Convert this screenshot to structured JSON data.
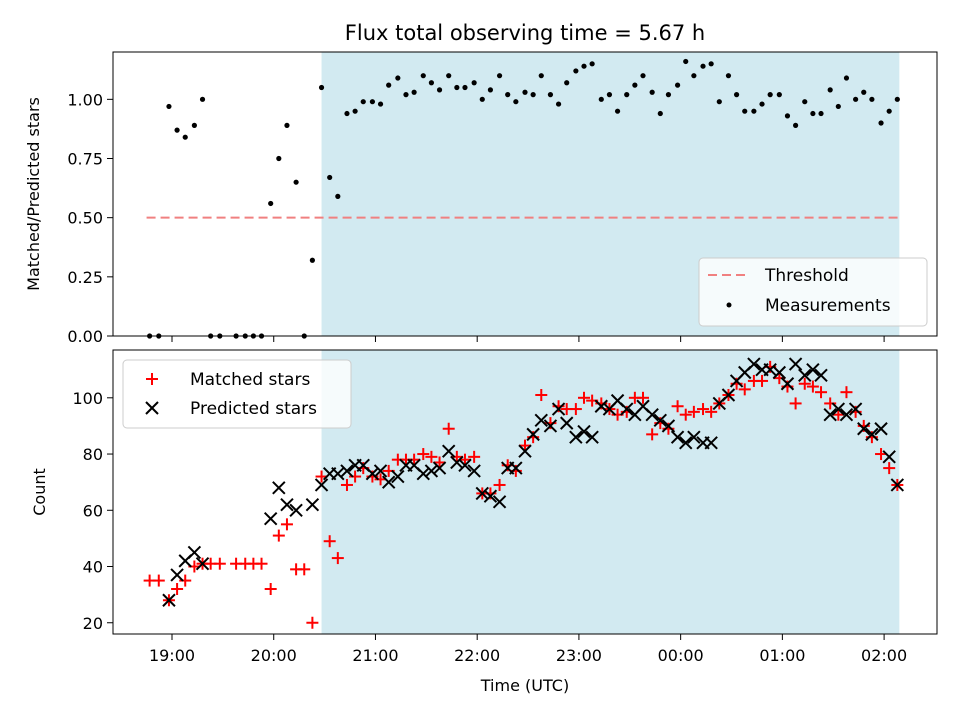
{
  "chart_data": [
    {
      "type": "scatter",
      "title": "Flux total observing time = 5.67 h",
      "xlabel": "",
      "ylabel": "Matched/Predicted stars",
      "x_range_hours": [
        18.42,
        26.52
      ],
      "ylim": [
        0,
        1.2
      ],
      "yticks": [
        0.0,
        0.25,
        0.5,
        0.75,
        1.0
      ],
      "ytick_labels": [
        "0.00",
        "0.25",
        "0.50",
        "0.75",
        "1.00"
      ],
      "shaded_region_hours": [
        20.47,
        26.15
      ],
      "shade_color": "#add8e6",
      "threshold": {
        "name": "Threshold",
        "value": 0.5,
        "x_range_hours": [
          18.75,
          26.15
        ],
        "color": "#f08080"
      },
      "legend": {
        "position": "bottom-right",
        "entries": [
          "Threshold",
          "Measurements"
        ]
      },
      "series": [
        {
          "name": "Measurements",
          "color": "#000000",
          "points": [
            [
              18.78,
              0.0
            ],
            [
              18.87,
              0.0
            ],
            [
              18.97,
              0.97
            ],
            [
              19.05,
              0.87
            ],
            [
              19.13,
              0.84
            ],
            [
              19.22,
              0.89
            ],
            [
              19.3,
              1.0
            ],
            [
              19.38,
              0.0
            ],
            [
              19.47,
              0.0
            ],
            [
              19.63,
              0.0
            ],
            [
              19.72,
              0.0
            ],
            [
              19.8,
              0.0
            ],
            [
              19.88,
              0.0
            ],
            [
              19.97,
              0.56
            ],
            [
              20.05,
              0.75
            ],
            [
              20.13,
              0.89
            ],
            [
              20.22,
              0.65
            ],
            [
              20.3,
              0.0
            ],
            [
              20.38,
              0.32
            ],
            [
              20.47,
              1.05
            ],
            [
              20.55,
              0.67
            ],
            [
              20.63,
              0.59
            ],
            [
              20.72,
              0.94
            ],
            [
              20.8,
              0.95
            ],
            [
              20.88,
              0.99
            ],
            [
              20.97,
              0.99
            ],
            [
              21.05,
              0.98
            ],
            [
              21.13,
              1.06
            ],
            [
              21.22,
              1.09
            ],
            [
              21.3,
              1.02
            ],
            [
              21.38,
              1.03
            ],
            [
              21.47,
              1.1
            ],
            [
              21.55,
              1.07
            ],
            [
              21.63,
              1.04
            ],
            [
              21.72,
              1.1
            ],
            [
              21.8,
              1.05
            ],
            [
              21.88,
              1.05
            ],
            [
              21.97,
              1.07
            ],
            [
              22.05,
              1.0
            ],
            [
              22.13,
              1.04
            ],
            [
              22.22,
              1.1
            ],
            [
              22.3,
              1.02
            ],
            [
              22.38,
              0.99
            ],
            [
              22.47,
              1.03
            ],
            [
              22.55,
              1.02
            ],
            [
              22.63,
              1.1
            ],
            [
              22.72,
              1.02
            ],
            [
              22.8,
              0.98
            ],
            [
              22.88,
              1.07
            ],
            [
              22.97,
              1.12
            ],
            [
              23.05,
              1.14
            ],
            [
              23.13,
              1.15
            ],
            [
              23.22,
              1.0
            ],
            [
              23.3,
              1.02
            ],
            [
              23.38,
              0.95
            ],
            [
              23.47,
              1.02
            ],
            [
              23.55,
              1.06
            ],
            [
              23.63,
              1.1
            ],
            [
              23.72,
              1.03
            ],
            [
              23.8,
              0.94
            ],
            [
              23.88,
              1.02
            ],
            [
              23.97,
              1.06
            ],
            [
              24.05,
              1.16
            ],
            [
              24.13,
              1.1
            ],
            [
              24.22,
              1.14
            ],
            [
              24.3,
              1.15
            ],
            [
              24.38,
              0.99
            ],
            [
              24.47,
              1.1
            ],
            [
              24.55,
              1.02
            ],
            [
              24.63,
              0.95
            ],
            [
              24.72,
              0.95
            ],
            [
              24.8,
              0.98
            ],
            [
              24.88,
              1.02
            ],
            [
              24.97,
              1.02
            ],
            [
              25.05,
              0.93
            ],
            [
              25.13,
              0.89
            ],
            [
              25.22,
              0.99
            ],
            [
              25.3,
              0.94
            ],
            [
              25.38,
              0.94
            ],
            [
              25.47,
              1.04
            ],
            [
              25.55,
              0.97
            ],
            [
              25.63,
              1.09
            ],
            [
              25.72,
              1.0
            ],
            [
              25.8,
              1.03
            ],
            [
              25.88,
              1.0
            ],
            [
              25.97,
              0.9
            ],
            [
              26.05,
              0.95
            ],
            [
              26.13,
              1.0
            ]
          ]
        }
      ]
    },
    {
      "type": "scatter",
      "title": "",
      "xlabel": "Time (UTC)",
      "ylabel": "Count",
      "x_range_hours": [
        18.42,
        26.52
      ],
      "xticks_hours": [
        19,
        20,
        21,
        22,
        23,
        24,
        25,
        26
      ],
      "xtick_labels": [
        "19:00",
        "20:00",
        "21:00",
        "22:00",
        "23:00",
        "00:00",
        "01:00",
        "02:00"
      ],
      "ylim": [
        16,
        117
      ],
      "yticks": [
        20,
        40,
        60,
        80,
        100
      ],
      "ytick_labels": [
        "20",
        "40",
        "60",
        "80",
        "100"
      ],
      "shaded_region_hours": [
        20.47,
        26.15
      ],
      "shade_color": "#add8e6",
      "legend": {
        "position": "top-left",
        "entries": [
          "Matched stars",
          "Predicted stars"
        ]
      },
      "series": [
        {
          "name": "Matched stars",
          "marker": "plus",
          "color": "#ff0000",
          "points": [
            [
              18.78,
              35
            ],
            [
              18.87,
              35
            ],
            [
              18.97,
              28
            ],
            [
              19.05,
              32
            ],
            [
              19.13,
              35
            ],
            [
              19.22,
              40
            ],
            [
              19.3,
              41
            ],
            [
              19.38,
              41
            ],
            [
              19.47,
              41
            ],
            [
              19.63,
              41
            ],
            [
              19.72,
              41
            ],
            [
              19.8,
              41
            ],
            [
              19.88,
              41
            ],
            [
              19.97,
              32
            ],
            [
              20.05,
              51
            ],
            [
              20.13,
              55
            ],
            [
              20.22,
              39
            ],
            [
              20.3,
              39
            ],
            [
              20.38,
              20
            ],
            [
              20.47,
              72
            ],
            [
              20.55,
              49
            ],
            [
              20.63,
              43
            ],
            [
              20.72,
              69
            ],
            [
              20.8,
              72
            ],
            [
              20.88,
              75
            ],
            [
              20.97,
              72
            ],
            [
              21.05,
              71
            ],
            [
              21.13,
              74
            ],
            [
              21.22,
              78
            ],
            [
              21.3,
              78
            ],
            [
              21.38,
              78
            ],
            [
              21.47,
              80
            ],
            [
              21.55,
              79
            ],
            [
              21.63,
              77
            ],
            [
              21.72,
              89
            ],
            [
              21.8,
              79
            ],
            [
              21.88,
              78
            ],
            [
              21.97,
              79
            ],
            [
              22.05,
              66
            ],
            [
              22.13,
              66
            ],
            [
              22.22,
              69
            ],
            [
              22.3,
              76
            ],
            [
              22.38,
              74
            ],
            [
              22.47,
              83
            ],
            [
              22.55,
              86
            ],
            [
              22.63,
              101
            ],
            [
              22.72,
              91
            ],
            [
              22.8,
              97
            ],
            [
              22.88,
              96
            ],
            [
              22.97,
              96
            ],
            [
              23.05,
              100
            ],
            [
              23.13,
              99
            ],
            [
              23.22,
              98
            ],
            [
              23.3,
              96
            ],
            [
              23.38,
              94
            ],
            [
              23.47,
              95
            ],
            [
              23.55,
              100
            ],
            [
              23.63,
              100
            ],
            [
              23.72,
              87
            ],
            [
              23.8,
              91
            ],
            [
              23.88,
              89
            ],
            [
              23.97,
              97
            ],
            [
              24.05,
              94
            ],
            [
              24.13,
              95
            ],
            [
              24.22,
              96
            ],
            [
              24.3,
              95
            ],
            [
              24.38,
              98
            ],
            [
              24.47,
              101
            ],
            [
              24.55,
              105
            ],
            [
              24.63,
              103
            ],
            [
              24.72,
              106
            ],
            [
              24.8,
              106
            ],
            [
              24.88,
              111
            ],
            [
              24.97,
              107
            ],
            [
              25.05,
              104
            ],
            [
              25.13,
              98
            ],
            [
              25.22,
              105
            ],
            [
              25.3,
              104
            ],
            [
              25.38,
              102
            ],
            [
              25.47,
              98
            ],
            [
              25.55,
              94
            ],
            [
              25.63,
              102
            ],
            [
              25.72,
              95
            ],
            [
              25.8,
              90
            ],
            [
              25.88,
              86
            ],
            [
              25.97,
              80
            ],
            [
              26.05,
              75
            ],
            [
              26.13,
              69
            ]
          ]
        },
        {
          "name": "Predicted stars",
          "marker": "x",
          "color": "#000000",
          "points": [
            [
              18.97,
              28
            ],
            [
              19.05,
              37
            ],
            [
              19.13,
              42
            ],
            [
              19.22,
              45
            ],
            [
              19.3,
              41
            ],
            [
              19.97,
              57
            ],
            [
              20.05,
              68
            ],
            [
              20.13,
              62
            ],
            [
              20.22,
              60
            ],
            [
              20.38,
              62
            ],
            [
              20.47,
              69
            ],
            [
              20.55,
              73
            ],
            [
              20.63,
              73
            ],
            [
              20.72,
              74
            ],
            [
              20.8,
              76
            ],
            [
              20.88,
              76
            ],
            [
              20.97,
              73
            ],
            [
              21.05,
              74
            ],
            [
              21.13,
              70
            ],
            [
              21.22,
              72
            ],
            [
              21.3,
              76
            ],
            [
              21.38,
              76
            ],
            [
              21.47,
              73
            ],
            [
              21.55,
              74
            ],
            [
              21.63,
              75
            ],
            [
              21.72,
              81
            ],
            [
              21.8,
              77
            ],
            [
              21.88,
              76
            ],
            [
              21.97,
              74
            ],
            [
              22.05,
              66
            ],
            [
              22.13,
              65
            ],
            [
              22.22,
              63
            ],
            [
              22.3,
              75
            ],
            [
              22.38,
              75
            ],
            [
              22.47,
              81
            ],
            [
              22.55,
              87
            ],
            [
              22.63,
              92
            ],
            [
              22.72,
              90
            ],
            [
              22.8,
              96
            ],
            [
              22.88,
              91
            ],
            [
              22.97,
              86
            ],
            [
              23.05,
              88
            ],
            [
              23.13,
              86
            ],
            [
              23.22,
              97
            ],
            [
              23.3,
              96
            ],
            [
              23.38,
              99
            ],
            [
              23.47,
              96
            ],
            [
              23.55,
              94
            ],
            [
              23.63,
              97
            ],
            [
              23.72,
              94
            ],
            [
              23.8,
              92
            ],
            [
              23.88,
              90
            ],
            [
              23.97,
              86
            ],
            [
              24.05,
              84
            ],
            [
              24.13,
              86
            ],
            [
              24.22,
              84
            ],
            [
              24.3,
              84
            ],
            [
              24.38,
              98
            ],
            [
              24.47,
              101
            ],
            [
              24.55,
              106
            ],
            [
              24.63,
              109
            ],
            [
              24.72,
              112
            ],
            [
              24.8,
              110
            ],
            [
              24.88,
              110
            ],
            [
              24.97,
              109
            ],
            [
              25.05,
              105
            ],
            [
              25.13,
              112
            ],
            [
              25.22,
              108
            ],
            [
              25.3,
              110
            ],
            [
              25.38,
              108
            ],
            [
              25.47,
              94
            ],
            [
              25.55,
              96
            ],
            [
              25.63,
              94
            ],
            [
              25.72,
              96
            ],
            [
              25.8,
              89
            ],
            [
              25.88,
              87
            ],
            [
              25.97,
              89
            ],
            [
              26.05,
              79
            ],
            [
              26.13,
              69
            ]
          ]
        }
      ]
    }
  ]
}
